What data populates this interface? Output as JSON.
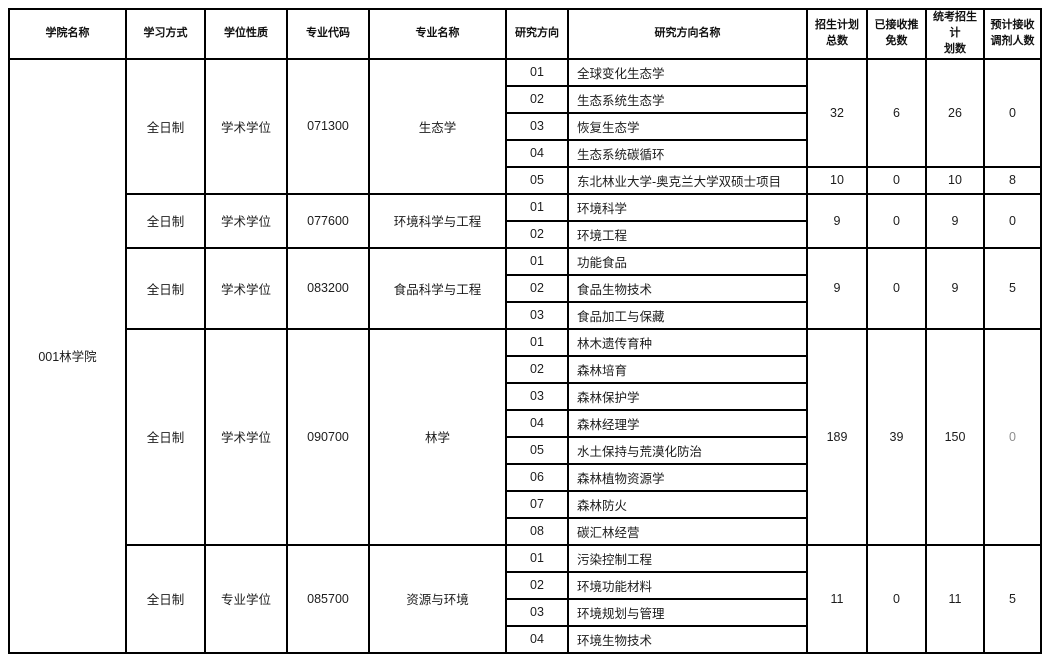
{
  "table": {
    "headers": [
      "学院名称",
      "学习方式",
      "学位性质",
      "专业代码",
      "专业名称",
      "研究方向",
      "研究方向名称",
      "招生计划\n总数",
      "已接收推\n免数",
      "统考招生计\n划数",
      "预计接收\n调剂人数"
    ],
    "college": "001林学院",
    "muted_color": "#8f8f8f",
    "programs": [
      {
        "study_mode": "全日制",
        "degree_type": "学术学位",
        "major_code": "071300",
        "major_name": "生态学",
        "directions": [
          {
            "code": "01",
            "name": "全球变化生态学"
          },
          {
            "code": "02",
            "name": "生态系统生态学"
          },
          {
            "code": "03",
            "name": "恢复生态学"
          },
          {
            "code": "04",
            "name": "生态系统碳循环"
          },
          {
            "code": "05",
            "name": "东北林业大学-奥克兰大学双硕士项目"
          }
        ],
        "stat_groups": [
          {
            "span": 4,
            "values": [
              "32",
              "6",
              "26",
              "0"
            ]
          },
          {
            "span": 1,
            "values": [
              "10",
              "0",
              "10",
              "8"
            ]
          }
        ]
      },
      {
        "study_mode": "全日制",
        "degree_type": "学术学位",
        "major_code": "077600",
        "major_name": "环境科学与工程",
        "directions": [
          {
            "code": "01",
            "name": "环境科学"
          },
          {
            "code": "02",
            "name": "环境工程"
          }
        ],
        "stat_groups": [
          {
            "span": 2,
            "values": [
              "9",
              "0",
              "9",
              "0"
            ]
          }
        ]
      },
      {
        "study_mode": "全日制",
        "degree_type": "学术学位",
        "major_code": "083200",
        "major_name": "食品科学与工程",
        "directions": [
          {
            "code": "01",
            "name": "功能食品"
          },
          {
            "code": "02",
            "name": "食品生物技术"
          },
          {
            "code": "03",
            "name": "食品加工与保藏"
          }
        ],
        "stat_groups": [
          {
            "span": 3,
            "values": [
              "9",
              "0",
              "9",
              "5"
            ]
          }
        ]
      },
      {
        "study_mode": "全日制",
        "degree_type": "学术学位",
        "major_code": "090700",
        "major_name": "林学",
        "directions": [
          {
            "code": "01",
            "name": "林木遗传育种"
          },
          {
            "code": "02",
            "name": "森林培育"
          },
          {
            "code": "03",
            "name": "森林保护学"
          },
          {
            "code": "04",
            "name": "森林经理学"
          },
          {
            "code": "05",
            "name": "水土保持与荒漠化防治"
          },
          {
            "code": "06",
            "name": "森林植物资源学"
          },
          {
            "code": "07",
            "name": "森林防火"
          },
          {
            "code": "08",
            "name": "碳汇林经营"
          }
        ],
        "stat_groups": [
          {
            "span": 8,
            "values": [
              "189",
              "39",
              "150",
              "0"
            ],
            "muted_cols": [
              3
            ]
          }
        ]
      },
      {
        "study_mode": "全日制",
        "degree_type": "专业学位",
        "major_code": "085700",
        "major_name": "资源与环境",
        "directions": [
          {
            "code": "01",
            "name": "污染控制工程"
          },
          {
            "code": "02",
            "name": "环境功能材料"
          },
          {
            "code": "03",
            "name": "环境规划与管理"
          },
          {
            "code": "04",
            "name": "环境生物技术"
          }
        ],
        "stat_groups": [
          {
            "span": 4,
            "values": [
              "11",
              "0",
              "11",
              "5"
            ]
          }
        ]
      }
    ]
  }
}
